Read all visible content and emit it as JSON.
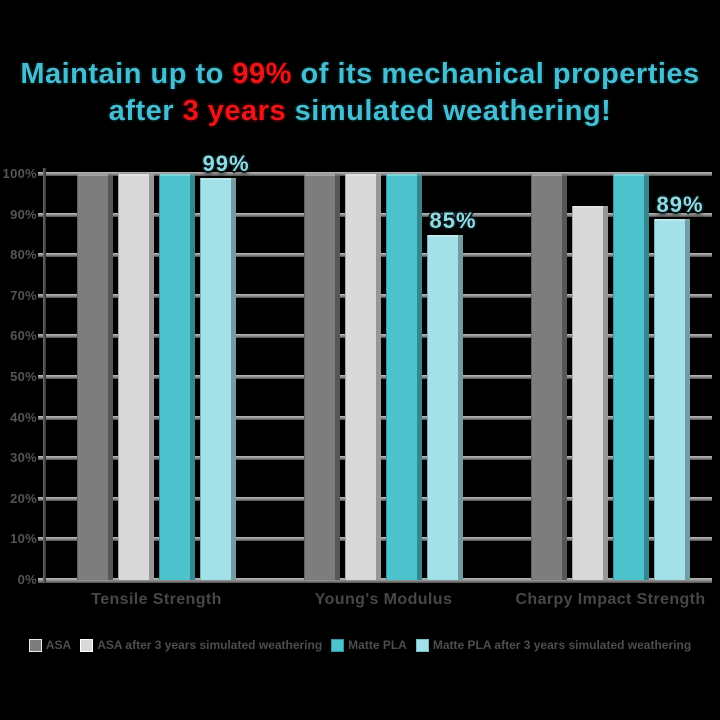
{
  "title": {
    "line1_pre": "Maintain up to ",
    "line1_highlight": "99%",
    "line1_post": " of its mechanical properties",
    "line2_pre": "after ",
    "line2_highlight": "3 years",
    "line2_post": " simulated weathering!",
    "text_color": "#45bdd2",
    "highlight_color": "#ec1414"
  },
  "chart_data": {
    "type": "bar",
    "categories": [
      "Tensile Strength",
      "Young's Modulus",
      "Charpy Impact Strength"
    ],
    "series": [
      {
        "name": "ASA",
        "color": "#7d7d7d",
        "swatch_border": "#e8e8e8",
        "values": [
          100,
          100,
          100
        ],
        "labels": [
          null,
          null,
          null
        ]
      },
      {
        "name": "ASA after 3 years simulated weathering",
        "color": "#d9d9d9",
        "swatch_border": "#ffffff",
        "values": [
          100,
          100,
          92
        ],
        "labels": [
          null,
          null,
          null
        ]
      },
      {
        "name": "Matte PLA",
        "color": "#4cc2cc",
        "swatch_border": "#2f99a3",
        "values": [
          100,
          100,
          100
        ],
        "labels": [
          null,
          null,
          null
        ]
      },
      {
        "name": "Matte PLA after 3 years simulated weathering",
        "color": "#a3e0e8",
        "swatch_border": "#6fc3cf",
        "values": [
          99,
          85,
          89
        ],
        "labels": [
          "99%",
          "85%",
          "89%"
        ]
      }
    ],
    "yticks": [
      "0%",
      "10%",
      "20%",
      "30%",
      "40%",
      "50%",
      "60%",
      "70%",
      "80%",
      "90%",
      "100%"
    ],
    "ylim": [
      0,
      100
    ],
    "xlabel": "",
    "ylabel": "",
    "grid": true,
    "legend_position": "bottom",
    "background_color": "#000000",
    "value_label_color": "#93dbe4",
    "axis_text_color": "#555555"
  }
}
